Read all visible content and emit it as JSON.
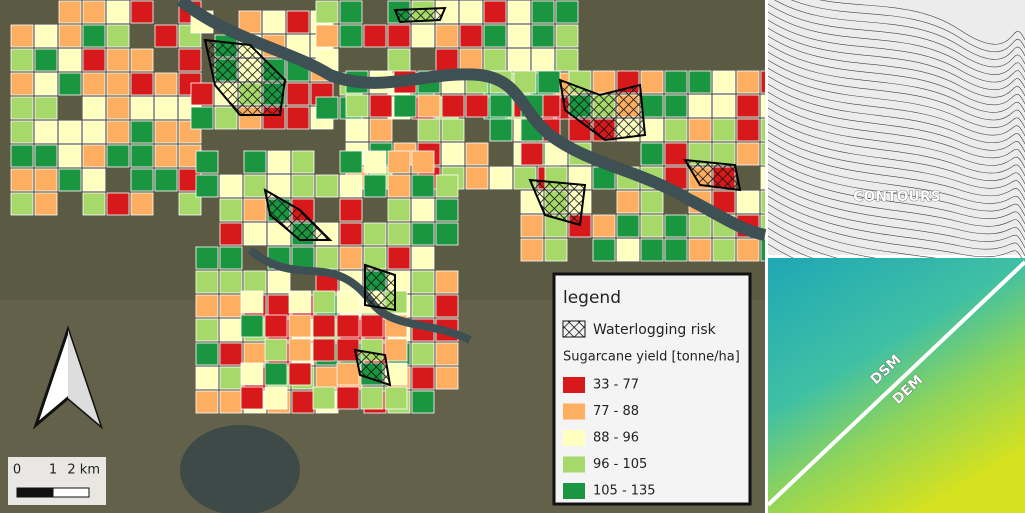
{
  "map": {
    "legend": {
      "title": "legend",
      "hatch_label": "Waterlogging risk",
      "yield_title": "Sugarcane yield [tonne/ha]",
      "classes": [
        {
          "label": "33 - 77",
          "color": "#d7191c"
        },
        {
          "label": "77 - 88",
          "color": "#fdae61"
        },
        {
          "label": "88 - 96",
          "color": "#ffffbf"
        },
        {
          "label": "96 - 105",
          "color": "#a6d96a"
        },
        {
          "label": "105 - 135",
          "color": "#1a9641"
        }
      ]
    },
    "scale_bar": {
      "labels": [
        "0",
        "1",
        "2 km"
      ]
    },
    "panels": {
      "contours": "CONTOURS",
      "dsm": "DSM",
      "dem": "DEM"
    }
  }
}
